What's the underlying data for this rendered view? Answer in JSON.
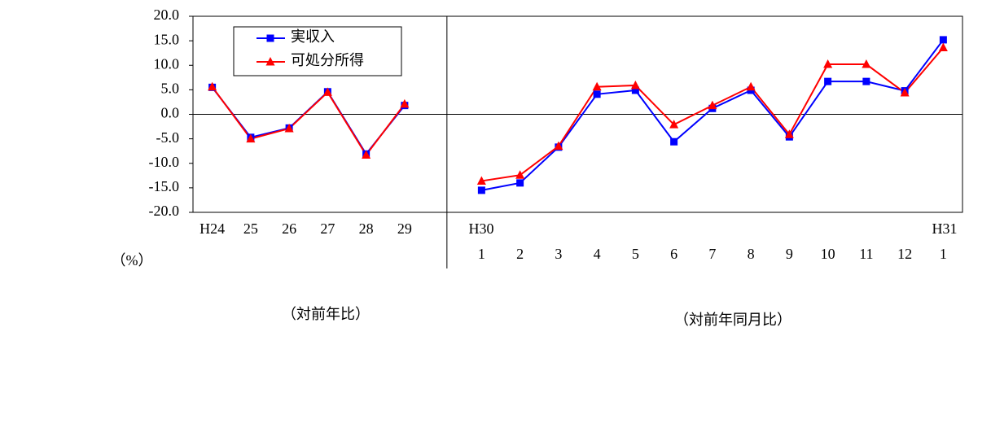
{
  "chart_data": {
    "type": "line",
    "categories": [
      "H24",
      "25",
      "26",
      "27",
      "28",
      "29",
      null,
      "1",
      "2",
      "3",
      "4",
      "5",
      "6",
      "7",
      "8",
      "9",
      "10",
      "11",
      "12",
      "1"
    ],
    "series": [
      {
        "name": "実収入",
        "color": "#0000ff",
        "marker": "square",
        "values": [
          5.5,
          -4.7,
          -2.8,
          4.6,
          -8.1,
          1.8,
          null,
          -15.5,
          -14.0,
          -6.7,
          4.1,
          4.9,
          -5.6,
          1.2,
          4.9,
          -4.6,
          6.7,
          6.7,
          4.8,
          15.2
        ]
      },
      {
        "name": "可処分所得",
        "color": "#ff0000",
        "marker": "triangle",
        "values": [
          5.6,
          -5.0,
          -2.9,
          4.5,
          -8.3,
          2.1,
          null,
          -13.6,
          -12.4,
          -6.5,
          5.6,
          5.9,
          -2.1,
          1.8,
          5.6,
          -4.1,
          10.2,
          10.2,
          4.4,
          13.6
        ]
      }
    ],
    "ylim": [
      -20,
      20
    ],
    "yticks": [
      {
        "value": -20,
        "label": "-20.0"
      },
      {
        "value": -15,
        "label": "-15.0"
      },
      {
        "value": -10,
        "label": "-10.0"
      },
      {
        "value": -5,
        "label": "-5.0"
      },
      {
        "value": 0,
        "label": "0.0"
      },
      {
        "value": 5,
        "label": "5.0"
      },
      {
        "value": 10,
        "label": "10.0"
      },
      {
        "value": 15,
        "label": "15.0"
      },
      {
        "value": 20,
        "label": "20.0"
      }
    ],
    "negative_tick_color": "#ff0000",
    "y_unit": "（%）",
    "era_labels": [
      "H30",
      "H31"
    ],
    "section_labels": [
      "（対前年比）",
      "（対前年同月比）"
    ],
    "legend": "upper-left"
  }
}
